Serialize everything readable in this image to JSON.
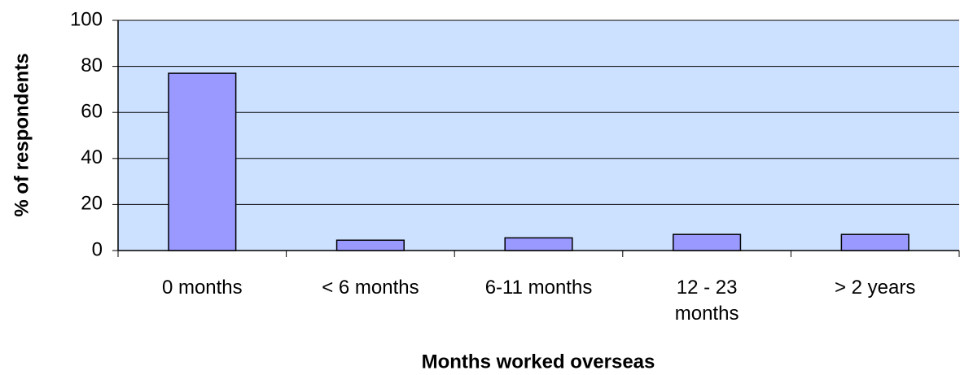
{
  "chart_data": {
    "type": "bar",
    "categories": [
      "0 months",
      "< 6 months",
      "6-11 months",
      "12 - 23 months",
      "> 2 years"
    ],
    "values": [
      77,
      4.5,
      5.5,
      7,
      7
    ],
    "color": "#9999ff",
    "plot_background": "#cce0ff",
    "ylim": [
      0,
      100
    ],
    "yticks": [
      0,
      20,
      40,
      60,
      80,
      100
    ],
    "grid": true,
    "y_label": "% of respondents",
    "x_label": "Months worked overseas"
  }
}
